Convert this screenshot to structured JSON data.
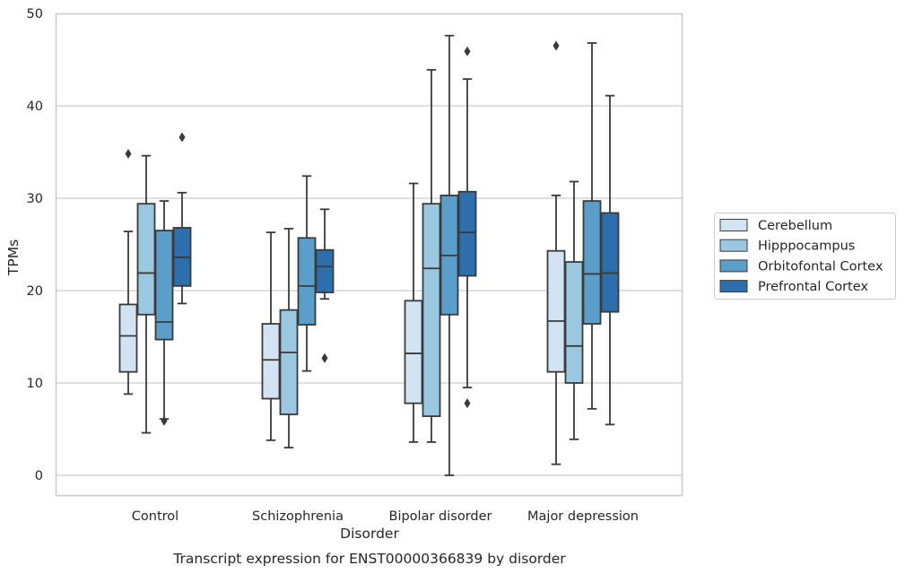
{
  "chart_data": {
    "type": "box",
    "caption": "Transcript expression for ENST00000366839 by disorder",
    "xlabel": "Disorder",
    "ylabel": "TPMs",
    "ylim": [
      -2.2,
      50
    ],
    "yticks": [
      0,
      10,
      20,
      30,
      40,
      50
    ],
    "grid": "horizontal",
    "legend_position": "right",
    "categories": [
      "Control",
      "Schizophrenia",
      "Bipolar disorder",
      "Major depression"
    ],
    "series": [
      {
        "name": "Cerebellum",
        "color": "#d2e3f3",
        "boxes": [
          {
            "whisker_low": 8.8,
            "q1": 11.2,
            "median": 15.1,
            "q3": 18.5,
            "whisker_high": 26.4,
            "outliers": [
              34.8
            ]
          },
          {
            "whisker_low": 3.8,
            "q1": 8.3,
            "median": 12.5,
            "q3": 16.4,
            "whisker_high": 26.3,
            "outliers": []
          },
          {
            "whisker_low": 3.6,
            "q1": 7.8,
            "median": 13.2,
            "q3": 18.9,
            "whisker_high": 31.6,
            "outliers": []
          },
          {
            "whisker_low": 1.2,
            "q1": 11.2,
            "median": 16.7,
            "q3": 24.3,
            "whisker_high": 30.3,
            "outliers": [
              46.5
            ]
          }
        ]
      },
      {
        "name": "Hipppocampus",
        "color": "#9ac8e0",
        "boxes": [
          {
            "whisker_low": 4.6,
            "q1": 17.4,
            "median": 21.9,
            "q3": 29.4,
            "whisker_high": 34.6,
            "outliers": []
          },
          {
            "whisker_low": 3.0,
            "q1": 6.6,
            "median": 13.3,
            "q3": 17.9,
            "whisker_high": 26.7,
            "outliers": []
          },
          {
            "whisker_low": 3.6,
            "q1": 6.4,
            "median": 22.4,
            "q3": 29.4,
            "whisker_high": 43.9,
            "outliers": []
          },
          {
            "whisker_low": 3.9,
            "q1": 10.0,
            "median": 14.0,
            "q3": 23.1,
            "whisker_high": 31.8,
            "outliers": []
          }
        ]
      },
      {
        "name": "Orbitofontal Cortex",
        "color": "#5a9ec9",
        "boxes": [
          {
            "whisker_low": 6.1,
            "q1": 14.7,
            "median": 16.6,
            "q3": 26.5,
            "whisker_high": 29.7,
            "outliers": [
              5.9
            ]
          },
          {
            "whisker_low": 11.3,
            "q1": 16.3,
            "median": 20.5,
            "q3": 25.7,
            "whisker_high": 32.4,
            "outliers": []
          },
          {
            "whisker_low": 0.0,
            "q1": 17.4,
            "median": 23.8,
            "q3": 30.3,
            "whisker_high": 47.6,
            "outliers": []
          },
          {
            "whisker_low": 7.2,
            "q1": 16.4,
            "median": 21.8,
            "q3": 29.7,
            "whisker_high": 46.8,
            "outliers": []
          }
        ]
      },
      {
        "name": "Prefrontal Cortex",
        "color": "#2d6fad",
        "boxes": [
          {
            "whisker_low": 18.6,
            "q1": 20.5,
            "median": 23.6,
            "q3": 26.8,
            "whisker_high": 30.6,
            "outliers": [
              36.6
            ]
          },
          {
            "whisker_low": 19.1,
            "q1": 19.8,
            "median": 22.6,
            "q3": 24.4,
            "whisker_high": 28.8,
            "outliers": [
              12.7
            ]
          },
          {
            "whisker_low": 9.5,
            "q1": 21.6,
            "median": 26.3,
            "q3": 30.7,
            "whisker_high": 42.9,
            "outliers": [
              7.8,
              45.9
            ]
          },
          {
            "whisker_low": 5.5,
            "q1": 17.7,
            "median": 21.9,
            "q3": 28.4,
            "whisker_high": 41.1,
            "outliers": []
          }
        ]
      }
    ]
  }
}
